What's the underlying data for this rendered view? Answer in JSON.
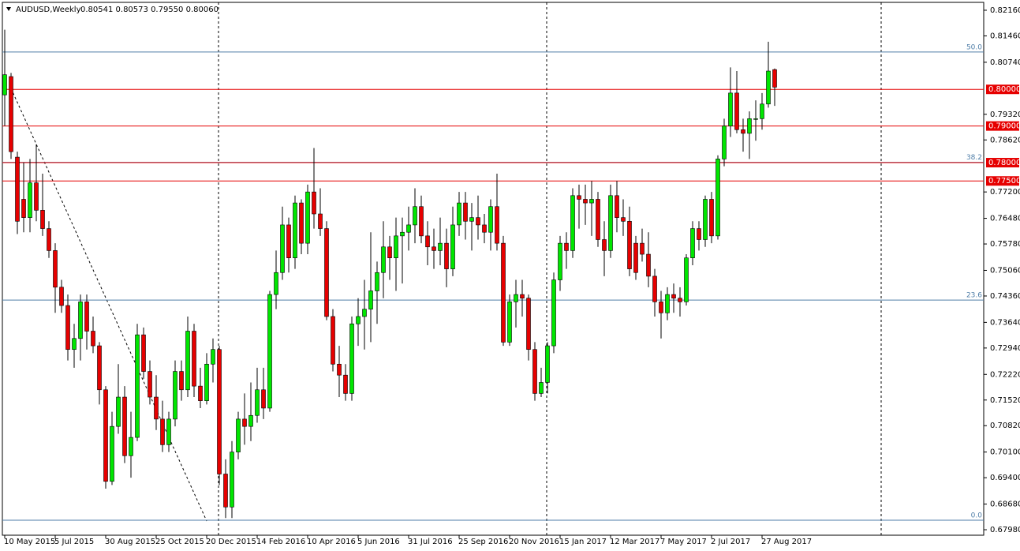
{
  "chart_data": {
    "type": "candlestick",
    "title": "AUDUSD,Weekly",
    "subtitle": "0.80541 0.80573 0.79550 0.80060",
    "up_color": "#00e600",
    "down_color": "#e60000",
    "categories": [
      "10 May 2015",
      null,
      null,
      null,
      null,
      null,
      null,
      null,
      "5 Jul 2015",
      null,
      null,
      null,
      null,
      null,
      null,
      null,
      "30 Aug 2015",
      null,
      null,
      null,
      null,
      null,
      null,
      null,
      "25 Oct 2015",
      null,
      null,
      null,
      null,
      null,
      null,
      null,
      "20 Dec 2015",
      null,
      null,
      null,
      null,
      null,
      null,
      null,
      "14 Feb 2016",
      null,
      null,
      null,
      null,
      null,
      null,
      null,
      "10 Apr 2016",
      null,
      null,
      null,
      null,
      null,
      null,
      null,
      "5 Jun 2016",
      null,
      null,
      null,
      null,
      null,
      null,
      null,
      "31 Jul 2016",
      null,
      null,
      null,
      null,
      null,
      null,
      null,
      "25 Sep 2016",
      null,
      null,
      null,
      null,
      null,
      null,
      null,
      "20 Nov 2016",
      null,
      null,
      null,
      null,
      null,
      null,
      null,
      "15 Jan 2017",
      null,
      null,
      null,
      null,
      null,
      null,
      null,
      "12 Mar 2017",
      null,
      null,
      null,
      null,
      null,
      null,
      null,
      "7 May 2017",
      null,
      null,
      null,
      null,
      null,
      null,
      null,
      "2 Jul 2017",
      null,
      null,
      null,
      null,
      null,
      null,
      null,
      "27 Aug 2017",
      null,
      null
    ],
    "open": [
      0.7985,
      0.8035,
      0.7815,
      0.77,
      0.765,
      0.7745,
      0.767,
      0.762,
      0.756,
      0.746,
      0.741,
      0.729,
      0.732,
      0.742,
      0.734,
      0.73,
      0.718,
      0.693,
      0.708,
      0.716,
      0.7,
      0.705,
      0.733,
      0.723,
      0.716,
      0.71,
      0.703,
      0.71,
      0.723,
      0.718,
      0.734,
      0.719,
      0.715,
      0.725,
      0.729,
      0.695,
      0.686,
      0.701,
      0.71,
      0.708,
      0.711,
      0.718,
      0.713,
      0.744,
      0.75,
      0.763,
      0.754,
      0.769,
      0.758,
      0.772,
      0.766,
      0.762,
      0.738,
      0.725,
      0.722,
      0.717,
      0.736,
      0.738,
      0.74,
      0.745,
      0.75,
      0.757,
      0.754,
      0.76,
      0.761,
      0.763,
      0.768,
      0.76,
      0.757,
      0.756,
      0.758,
      0.751,
      0.763,
      0.769,
      0.764,
      0.765,
      0.763,
      0.761,
      0.768,
      0.758,
      0.731,
      0.742,
      0.744,
      0.743,
      0.729,
      0.717,
      0.72,
      0.73,
      0.748,
      0.758,
      0.756,
      0.771,
      0.77,
      0.769,
      0.77,
      0.759,
      0.756,
      0.771,
      0.765,
      0.764,
      0.758,
      0.758,
      0.755,
      0.749,
      0.742,
      0.739,
      0.744,
      0.743,
      0.742,
      0.754,
      0.762,
      0.759,
      0.77,
      0.76,
      0.781,
      0.79,
      0.799,
      0.789,
      0.788,
      0.792,
      0.792,
      0.796,
      0.8054
    ],
    "high": [
      0.8163,
      0.8045,
      0.783,
      0.78,
      0.781,
      0.785,
      0.777,
      0.764,
      0.758,
      0.748,
      0.744,
      0.736,
      0.744,
      0.744,
      0.738,
      0.731,
      0.719,
      0.712,
      0.725,
      0.719,
      0.712,
      0.736,
      0.735,
      0.726,
      0.722,
      0.715,
      0.712,
      0.726,
      0.726,
      0.738,
      0.736,
      0.724,
      0.728,
      0.732,
      0.73,
      0.699,
      0.704,
      0.712,
      0.717,
      0.72,
      0.724,
      0.724,
      0.745,
      0.756,
      0.768,
      0.765,
      0.771,
      0.77,
      0.774,
      0.784,
      0.773,
      0.764,
      0.74,
      0.73,
      0.725,
      0.738,
      0.743,
      0.748,
      0.761,
      0.753,
      0.764,
      0.76,
      0.765,
      0.765,
      0.768,
      0.773,
      0.771,
      0.764,
      0.762,
      0.765,
      0.762,
      0.768,
      0.772,
      0.772,
      0.769,
      0.771,
      0.766,
      0.77,
      0.777,
      0.76,
      0.744,
      0.748,
      0.748,
      0.744,
      0.731,
      0.724,
      0.731,
      0.75,
      0.76,
      0.761,
      0.773,
      0.774,
      0.774,
      0.775,
      0.772,
      0.764,
      0.774,
      0.775,
      0.77,
      0.768,
      0.76,
      0.762,
      0.761,
      0.751,
      0.745,
      0.746,
      0.747,
      0.746,
      0.755,
      0.764,
      0.764,
      0.771,
      0.772,
      0.782,
      0.792,
      0.806,
      0.805,
      0.792,
      0.794,
      0.797,
      0.799,
      0.813,
      0.8057
    ],
    "low": [
      0.79,
      0.781,
      0.7605,
      0.761,
      0.761,
      0.764,
      0.76,
      0.754,
      0.739,
      0.739,
      0.726,
      0.724,
      0.726,
      0.729,
      0.728,
      0.714,
      0.691,
      0.692,
      0.706,
      0.698,
      0.694,
      0.704,
      0.721,
      0.714,
      0.707,
      0.701,
      0.701,
      0.708,
      0.715,
      0.716,
      0.716,
      0.713,
      0.714,
      0.72,
      0.692,
      0.683,
      0.683,
      0.699,
      0.703,
      0.704,
      0.709,
      0.71,
      0.712,
      0.74,
      0.748,
      0.75,
      0.751,
      0.755,
      0.755,
      0.762,
      0.76,
      0.737,
      0.723,
      0.716,
      0.715,
      0.715,
      0.73,
      0.729,
      0.731,
      0.736,
      0.743,
      0.748,
      0.745,
      0.747,
      0.756,
      0.758,
      0.758,
      0.752,
      0.751,
      0.752,
      0.746,
      0.749,
      0.76,
      0.759,
      0.756,
      0.759,
      0.758,
      0.756,
      0.756,
      0.73,
      0.73,
      0.735,
      0.738,
      0.726,
      0.715,
      0.716,
      0.717,
      0.728,
      0.745,
      0.751,
      0.754,
      0.762,
      0.763,
      0.76,
      0.757,
      0.749,
      0.754,
      0.761,
      0.76,
      0.749,
      0.748,
      0.753,
      0.746,
      0.738,
      0.732,
      0.737,
      0.739,
      0.738,
      0.741,
      0.752,
      0.756,
      0.757,
      0.758,
      0.759,
      0.779,
      0.787,
      0.788,
      0.783,
      0.781,
      0.786,
      0.789,
      0.795,
      0.7955
    ],
    "close": [
      0.804,
      0.783,
      0.764,
      0.765,
      0.7745,
      0.767,
      0.762,
      0.756,
      0.746,
      0.741,
      0.729,
      0.732,
      0.742,
      0.734,
      0.73,
      0.718,
      0.693,
      0.708,
      0.716,
      0.7,
      0.705,
      0.733,
      0.723,
      0.716,
      0.71,
      0.703,
      0.71,
      0.723,
      0.718,
      0.734,
      0.719,
      0.715,
      0.725,
      0.729,
      0.695,
      0.686,
      0.701,
      0.71,
      0.708,
      0.711,
      0.718,
      0.713,
      0.744,
      0.75,
      0.763,
      0.754,
      0.769,
      0.758,
      0.772,
      0.766,
      0.762,
      0.738,
      0.725,
      0.722,
      0.717,
      0.736,
      0.738,
      0.74,
      0.745,
      0.75,
      0.757,
      0.754,
      0.76,
      0.761,
      0.763,
      0.768,
      0.76,
      0.757,
      0.756,
      0.758,
      0.751,
      0.763,
      0.769,
      0.764,
      0.765,
      0.763,
      0.761,
      0.768,
      0.758,
      0.731,
      0.742,
      0.744,
      0.743,
      0.729,
      0.717,
      0.72,
      0.73,
      0.748,
      0.758,
      0.756,
      0.771,
      0.77,
      0.769,
      0.77,
      0.759,
      0.756,
      0.771,
      0.765,
      0.764,
      0.751,
      0.75,
      0.755,
      0.749,
      0.742,
      0.739,
      0.744,
      0.743,
      0.742,
      0.754,
      0.762,
      0.759,
      0.77,
      0.76,
      0.781,
      0.79,
      0.799,
      0.789,
      0.788,
      0.792,
      0.792,
      0.796,
      0.805,
      0.8006
    ],
    "ylim": [
      0.6783,
      0.82375
    ],
    "yticks": [
      {
        "value": 0.8216,
        "label": "0.82160"
      },
      {
        "value": 0.8146,
        "label": "0.81460"
      },
      {
        "value": 0.8074,
        "label": "0.80740"
      },
      {
        "value": 0.7932,
        "label": "0.79320"
      },
      {
        "value": 0.7862,
        "label": "0.78620"
      },
      {
        "value": 0.772,
        "label": "0.77200"
      },
      {
        "value": 0.7648,
        "label": "0.76480"
      },
      {
        "value": 0.7578,
        "label": "0.75780"
      },
      {
        "value": 0.7506,
        "label": "0.75060"
      },
      {
        "value": 0.7436,
        "label": "0.74360"
      },
      {
        "value": 0.7364,
        "label": "0.73640"
      },
      {
        "value": 0.7294,
        "label": "0.72940"
      },
      {
        "value": 0.7222,
        "label": "0.72220"
      },
      {
        "value": 0.7152,
        "label": "0.71520"
      },
      {
        "value": 0.7082,
        "label": "0.70820"
      },
      {
        "value": 0.701,
        "label": "0.70100"
      },
      {
        "value": 0.694,
        "label": "0.69400"
      },
      {
        "value": 0.6868,
        "label": "0.68680"
      },
      {
        "value": 0.6798,
        "label": "0.67980"
      }
    ],
    "level_color": "#e60000",
    "levels": [
      {
        "value": 0.8,
        "label": "0.80000"
      },
      {
        "value": 0.79,
        "label": "0.79000"
      },
      {
        "value": 0.78,
        "label": "0.78000"
      },
      {
        "value": 0.775,
        "label": "0.77500"
      }
    ],
    "fib_color": "#4f7ea8",
    "fib_levels": [
      {
        "value": 0.8102,
        "label": "50.0"
      },
      {
        "value": 0.7801,
        "label": "38.2"
      },
      {
        "value": 0.7425,
        "label": "23.6"
      },
      {
        "value": 0.6824,
        "label": "0.0"
      }
    ]
  }
}
